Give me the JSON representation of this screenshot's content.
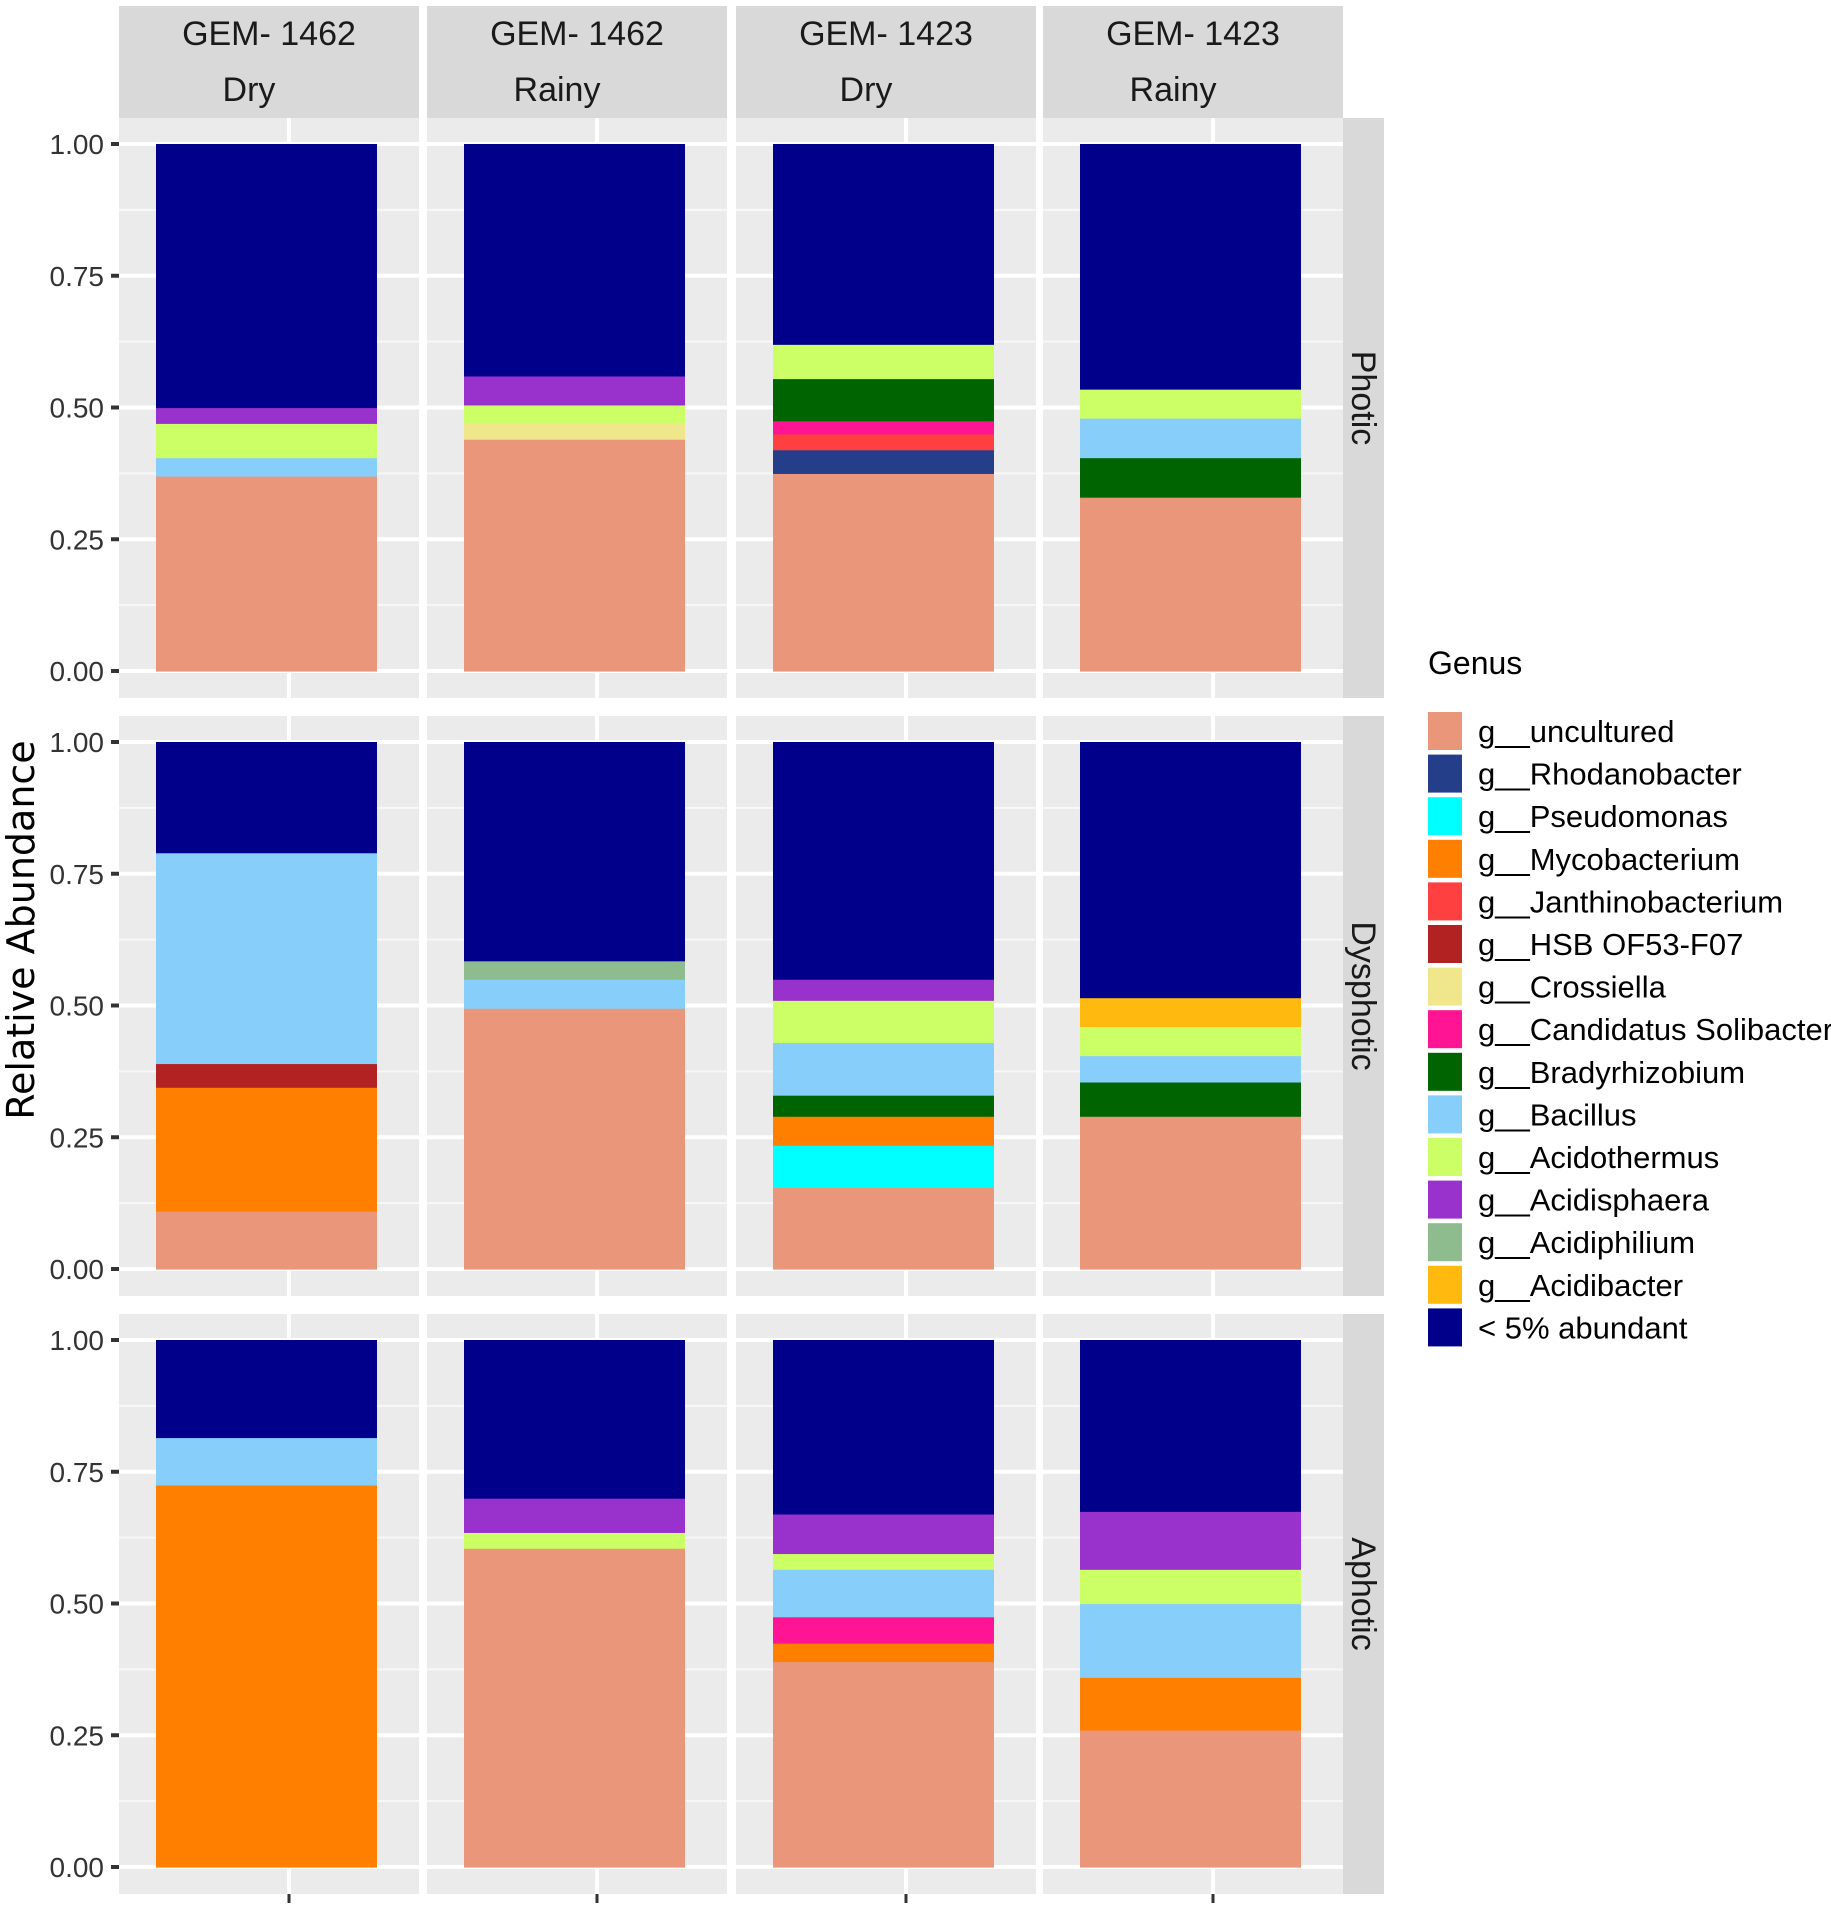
{
  "chart_data": {
    "type": "bar",
    "stacked": true,
    "ylabel": "Relative Abundance",
    "xlabel": "",
    "ylim": [
      0,
      1
    ],
    "y_ticks": [
      "0.00",
      "0.25",
      "0.50",
      "0.75",
      "1.00"
    ],
    "column_facets": [
      {
        "site": "GEM- 1462",
        "season": "Dry"
      },
      {
        "site": "GEM- 1462",
        "season": "Rainy"
      },
      {
        "site": "GEM- 1423",
        "season": "Dry"
      },
      {
        "site": "GEM- 1423",
        "season": "Rainy"
      }
    ],
    "row_facets": [
      "Photic",
      "Dysphotic",
      "Aphotic"
    ],
    "legend": {
      "title": "Genus",
      "entries": [
        {
          "key": "uncultured",
          "label": "g__uncultured",
          "color": "#E9967A"
        },
        {
          "key": "rhodanobacter",
          "label": "g__Rhodanobacter",
          "color": "#253E8A"
        },
        {
          "key": "pseudomonas",
          "label": "g__Pseudomonas",
          "color": "#00FFFF"
        },
        {
          "key": "mycobacterium",
          "label": "g__Mycobacterium",
          "color": "#FF7F00"
        },
        {
          "key": "janthinobacterium",
          "label": "g__Janthinobacterium",
          "color": "#FF4040"
        },
        {
          "key": "hsb",
          "label": "g__HSB OF53-F07",
          "color": "#B22222"
        },
        {
          "key": "crossiella",
          "label": "g__Crossiella",
          "color": "#F0E68C"
        },
        {
          "key": "solibacter",
          "label": "g__Candidatus Solibacter",
          "color": "#FF1493"
        },
        {
          "key": "bradyrhizobium",
          "label": "g__Bradyrhizobium",
          "color": "#006400"
        },
        {
          "key": "bacillus",
          "label": "g__Bacillus",
          "color": "#87CEFA"
        },
        {
          "key": "acidothermus",
          "label": "g__Acidothermus",
          "color": "#CCFF66"
        },
        {
          "key": "acidisphaera",
          "label": "g__Acidisphaera",
          "color": "#9932CC"
        },
        {
          "key": "acidiphilium",
          "label": "g__Acidiphilium",
          "color": "#8FBC8F"
        },
        {
          "key": "acidibacter",
          "label": "g__Acidibacter",
          "color": "#FFB90F"
        },
        {
          "key": "lt5",
          "label": "< 5% abundant",
          "color": "#00008B"
        }
      ]
    },
    "panels": [
      [
        [
          {
            "g": "uncultured",
            "v": 0.37
          },
          {
            "g": "bacillus",
            "v": 0.035
          },
          {
            "g": "acidothermus",
            "v": 0.065
          },
          {
            "g": "acidisphaera",
            "v": 0.03
          },
          {
            "g": "lt5",
            "v": 0.5
          }
        ],
        [
          {
            "g": "uncultured",
            "v": 0.44
          },
          {
            "g": "crossiella",
            "v": 0.03
          },
          {
            "g": "acidothermus",
            "v": 0.035
          },
          {
            "g": "acidisphaera",
            "v": 0.055
          },
          {
            "g": "lt5",
            "v": 0.44
          }
        ],
        [
          {
            "g": "uncultured",
            "v": 0.375
          },
          {
            "g": "rhodanobacter",
            "v": 0.045
          },
          {
            "g": "janthinobacterium",
            "v": 0.03
          },
          {
            "g": "solibacter",
            "v": 0.025
          },
          {
            "g": "bradyrhizobium",
            "v": 0.08
          },
          {
            "g": "acidothermus",
            "v": 0.065
          },
          {
            "g": "lt5",
            "v": 0.38
          }
        ],
        [
          {
            "g": "uncultured",
            "v": 0.33
          },
          {
            "g": "bradyrhizobium",
            "v": 0.075
          },
          {
            "g": "bacillus",
            "v": 0.075
          },
          {
            "g": "acidothermus",
            "v": 0.055
          },
          {
            "g": "lt5",
            "v": 0.465
          }
        ]
      ],
      [
        [
          {
            "g": "uncultured",
            "v": 0.11
          },
          {
            "g": "mycobacterium",
            "v": 0.235
          },
          {
            "g": "hsb",
            "v": 0.045
          },
          {
            "g": "bacillus",
            "v": 0.4
          },
          {
            "g": "lt5",
            "v": 0.21
          }
        ],
        [
          {
            "g": "uncultured",
            "v": 0.495
          },
          {
            "g": "bacillus",
            "v": 0.055
          },
          {
            "g": "acidiphilium",
            "v": 0.035
          },
          {
            "g": "lt5",
            "v": 0.415
          }
        ],
        [
          {
            "g": "uncultured",
            "v": 0.155
          },
          {
            "g": "pseudomonas",
            "v": 0.08
          },
          {
            "g": "mycobacterium",
            "v": 0.055
          },
          {
            "g": "bradyrhizobium",
            "v": 0.04
          },
          {
            "g": "bacillus",
            "v": 0.1
          },
          {
            "g": "acidothermus",
            "v": 0.08
          },
          {
            "g": "acidisphaera",
            "v": 0.04
          },
          {
            "g": "lt5",
            "v": 0.45
          }
        ],
        [
          {
            "g": "uncultured",
            "v": 0.29
          },
          {
            "g": "bradyrhizobium",
            "v": 0.065
          },
          {
            "g": "bacillus",
            "v": 0.05
          },
          {
            "g": "acidothermus",
            "v": 0.055
          },
          {
            "g": "acidibacter",
            "v": 0.055
          },
          {
            "g": "lt5",
            "v": 0.485
          }
        ]
      ],
      [
        [
          {
            "g": "mycobacterium",
            "v": 0.725
          },
          {
            "g": "bacillus",
            "v": 0.09
          },
          {
            "g": "lt5",
            "v": 0.185
          }
        ],
        [
          {
            "g": "uncultured",
            "v": 0.605
          },
          {
            "g": "acidothermus",
            "v": 0.03
          },
          {
            "g": "acidisphaera",
            "v": 0.065
          },
          {
            "g": "lt5",
            "v": 0.3
          }
        ],
        [
          {
            "g": "uncultured",
            "v": 0.39
          },
          {
            "g": "mycobacterium",
            "v": 0.035
          },
          {
            "g": "solibacter",
            "v": 0.05
          },
          {
            "g": "bacillus",
            "v": 0.09
          },
          {
            "g": "acidothermus",
            "v": 0.03
          },
          {
            "g": "acidisphaera",
            "v": 0.075
          },
          {
            "g": "lt5",
            "v": 0.33
          }
        ],
        [
          {
            "g": "uncultured",
            "v": 0.26
          },
          {
            "g": "mycobacterium",
            "v": 0.1
          },
          {
            "g": "bacillus",
            "v": 0.14
          },
          {
            "g": "acidothermus",
            "v": 0.065
          },
          {
            "g": "acidisphaera",
            "v": 0.11
          },
          {
            "g": "lt5",
            "v": 0.325
          }
        ]
      ]
    ]
  }
}
